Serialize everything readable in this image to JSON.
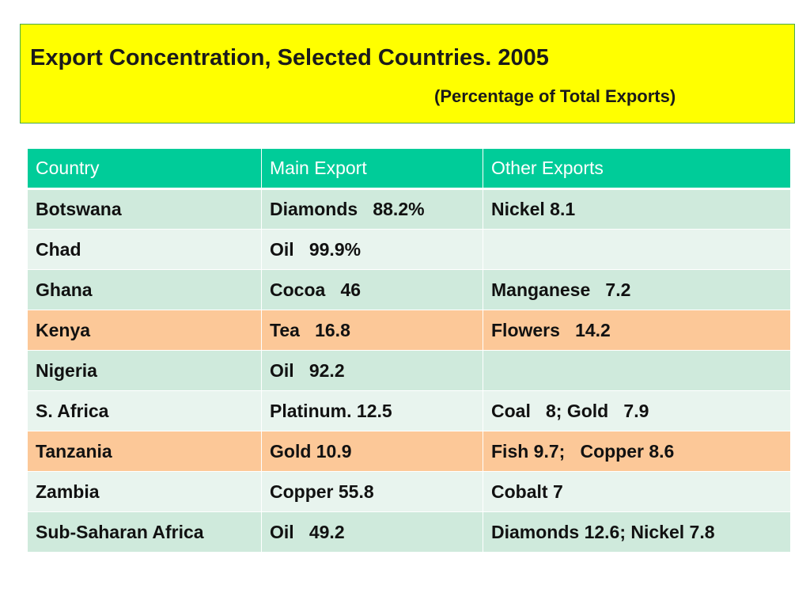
{
  "slide": {
    "title": "Export Concentration, Selected Countries. 2005",
    "subtitle": "(Percentage of Total Exports)"
  },
  "table": {
    "headers": [
      "Country",
      "Main Export",
      "Other Exports"
    ],
    "rows": [
      [
        "Botswana",
        "Diamonds   88.2%",
        "Nickel 8.1"
      ],
      [
        "Chad",
        "Oil   99.9%",
        ""
      ],
      [
        "Ghana",
        "Cocoa   46",
        "Manganese   7.2"
      ],
      [
        "Kenya",
        "Tea   16.8",
        "Flowers   14.2"
      ],
      [
        "Nigeria",
        "Oil   92.2",
        ""
      ],
      [
        "S. Africa",
        "Platinum. 12.5",
        "Coal   8; Gold   7.9"
      ],
      [
        "Tanzania",
        "Gold 10.9",
        "Fish 9.7;   Copper 8.6"
      ],
      [
        "Zambia",
        "Copper 55.8",
        "Cobalt 7"
      ],
      [
        "Sub-Saharan Africa",
        "Oil   49.2",
        "Diamonds 12.6; Nickel 7.8"
      ]
    ]
  },
  "colors": {
    "title_background": "#ffff00",
    "header_background": "#00cc99",
    "row_band_dark": "#cfeadc",
    "row_band_light": "#e8f4ee",
    "row_highlight": "#fcc898"
  }
}
